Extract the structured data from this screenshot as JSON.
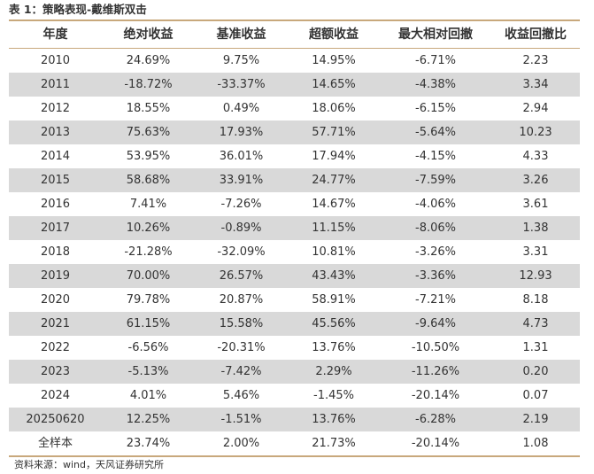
{
  "title": "表 1：策略表现-戴维斯双击",
  "columns": [
    "年度",
    "绝对收益",
    "基准收益",
    "超额收益",
    "最大相对回撤",
    "收益回撤比"
  ],
  "rows": [
    [
      "2010",
      "24.69%",
      "9.75%",
      "14.95%",
      "-6.71%",
      "2.23"
    ],
    [
      "2011",
      "-18.72%",
      "-33.37%",
      "14.65%",
      "-4.38%",
      "3.34"
    ],
    [
      "2012",
      "18.55%",
      "0.49%",
      "18.06%",
      "-6.15%",
      "2.94"
    ],
    [
      "2013",
      "75.63%",
      "17.93%",
      "57.71%",
      "-5.64%",
      "10.23"
    ],
    [
      "2014",
      "53.95%",
      "36.01%",
      "17.94%",
      "-4.15%",
      "4.33"
    ],
    [
      "2015",
      "58.68%",
      "33.91%",
      "24.77%",
      "-7.59%",
      "3.26"
    ],
    [
      "2016",
      "7.41%",
      "-7.26%",
      "14.67%",
      "-4.06%",
      "3.61"
    ],
    [
      "2017",
      "10.26%",
      "-0.89%",
      "11.15%",
      "-8.06%",
      "1.38"
    ],
    [
      "2018",
      "-21.28%",
      "-32.09%",
      "10.81%",
      "-3.26%",
      "3.31"
    ],
    [
      "2019",
      "70.00%",
      "26.57%",
      "43.43%",
      "-3.36%",
      "12.93"
    ],
    [
      "2020",
      "79.78%",
      "20.87%",
      "58.91%",
      "-7.21%",
      "8.18"
    ],
    [
      "2021",
      "61.15%",
      "15.58%",
      "45.56%",
      "-9.64%",
      "4.73"
    ],
    [
      "2022",
      "-6.56%",
      "-20.31%",
      "13.76%",
      "-10.50%",
      "1.31"
    ],
    [
      "2023",
      "-5.13%",
      "-7.42%",
      "2.29%",
      "-11.26%",
      "0.20"
    ],
    [
      "2024",
      "4.01%",
      "5.46%",
      "-1.45%",
      "-20.14%",
      "0.07"
    ],
    [
      "20250620",
      "12.25%",
      "-1.51%",
      "13.76%",
      "-6.28%",
      "2.19"
    ],
    [
      "全样本",
      "23.74%",
      "2.00%",
      "21.73%",
      "-20.14%",
      "1.08"
    ]
  ],
  "source": "资料来源：wind，天风证券研究所",
  "colors": {
    "rule": "#c8a87c",
    "shade": "#d9d9d9",
    "text": "#333333"
  }
}
